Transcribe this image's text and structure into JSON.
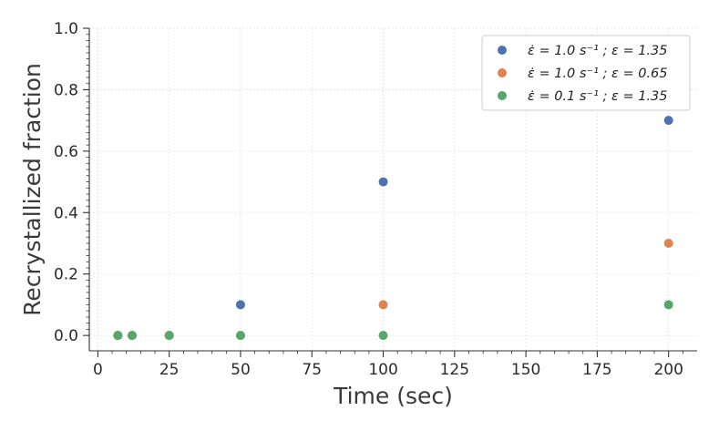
{
  "chart_data": {
    "type": "scatter",
    "xlabel": "Time (sec)",
    "ylabel": "Recrystallized fraction",
    "xlim": [
      -3,
      210
    ],
    "ylim": [
      -0.05,
      1.0
    ],
    "x_ticks": [
      0,
      25,
      50,
      75,
      100,
      125,
      150,
      175,
      200
    ],
    "x_tick_labels": [
      "0",
      "25",
      "50",
      "75",
      "100",
      "125",
      "150",
      "175",
      "200"
    ],
    "y_ticks": [
      0.0,
      0.2,
      0.4,
      0.6,
      0.8,
      1.0
    ],
    "y_tick_labels": [
      "0.0",
      "0.2",
      "0.4",
      "0.6",
      "0.8",
      "1.0"
    ],
    "grid": true,
    "legend_position": "top-right",
    "series": [
      {
        "name": "ε̇ = 1.0 s⁻¹ ; ε = 1.35",
        "color": "#4c72b0",
        "points": [
          [
            7,
            0.0
          ],
          [
            12,
            0.0
          ],
          [
            25,
            0.0
          ],
          [
            50,
            0.1
          ],
          [
            100,
            0.5
          ],
          [
            200,
            0.7
          ]
        ]
      },
      {
        "name": "ε̇ = 1.0 s⁻¹ ; ε = 0.65",
        "color": "#dd8452",
        "points": [
          [
            7,
            0.0
          ],
          [
            12,
            0.0
          ],
          [
            25,
            0.0
          ],
          [
            50,
            0.0
          ],
          [
            100,
            0.1
          ],
          [
            200,
            0.3
          ]
        ]
      },
      {
        "name": "ε̇ = 0.1 s⁻¹ ; ε = 1.35",
        "color": "#55a868",
        "points": [
          [
            7,
            0.0
          ],
          [
            12,
            0.0
          ],
          [
            25,
            0.0
          ],
          [
            50,
            0.0
          ],
          [
            100,
            0.0
          ],
          [
            200,
            0.1
          ]
        ]
      }
    ]
  }
}
